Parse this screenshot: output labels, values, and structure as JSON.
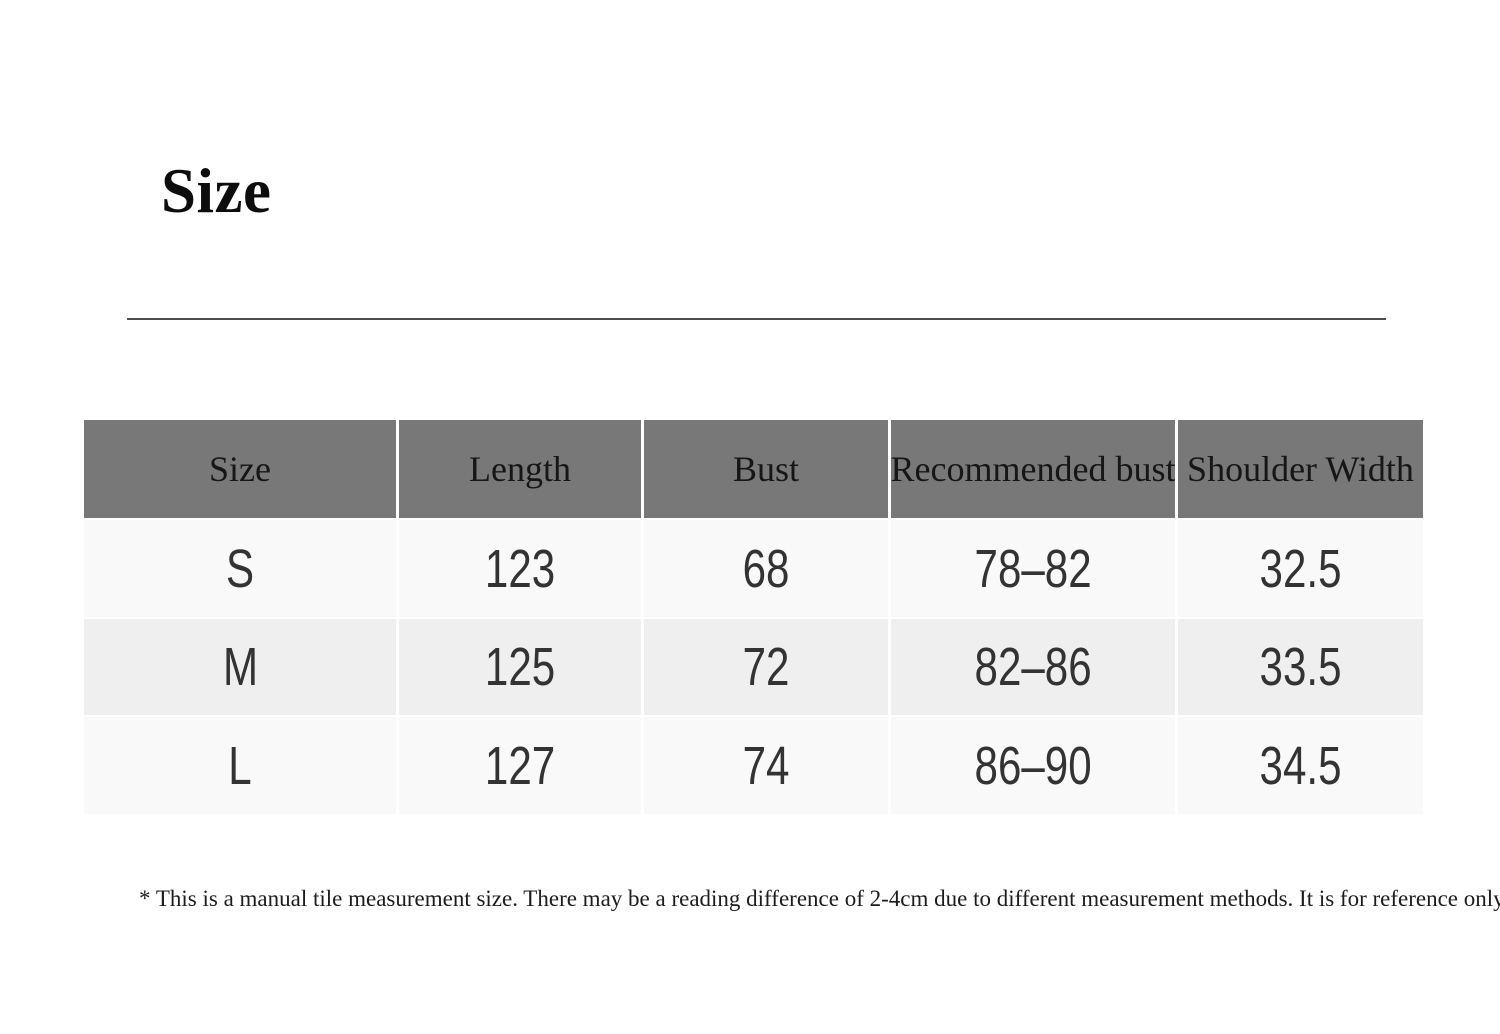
{
  "page": {
    "title": "Size"
  },
  "table": {
    "headers": [
      "Size",
      "Length",
      "Bust",
      "Recommended bust",
      "Shoulder Width"
    ],
    "rows": [
      [
        "S",
        "123",
        "68",
        "78–82",
        "32.5"
      ],
      [
        "M",
        "125",
        "72",
        "82–86",
        "33.5"
      ],
      [
        "L",
        "127",
        "74",
        "86–90",
        "34.5"
      ]
    ]
  },
  "footnote": "* This is a manual tile measurement size. There may be a reading difference of 2-4cm due to different measurement methods. It is for reference only.",
  "colors": {
    "header_bg": "#787878",
    "row_light": "#f9f9f9",
    "row_alt": "#efefef",
    "divider": "#4d4d4d"
  }
}
